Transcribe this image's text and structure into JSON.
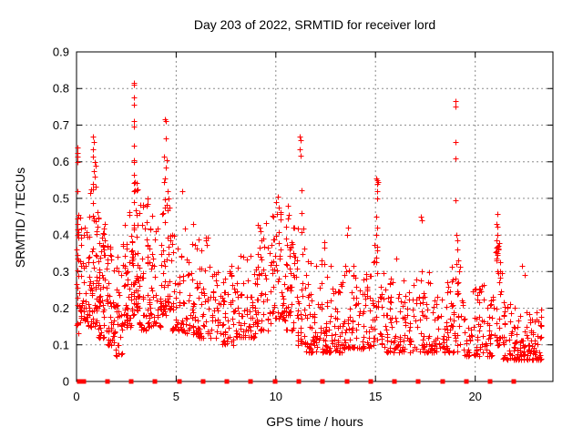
{
  "chart_data": {
    "type": "scatter",
    "title": "Day 203 of 2022, SRMTID for receiver lord",
    "xlabel": "GPS time / hours",
    "ylabel": "SRMTID / TECUs",
    "xlim": [
      0,
      23.9
    ],
    "ylim": [
      0,
      0.9
    ],
    "xticks": [
      0,
      5,
      10,
      15,
      20
    ],
    "xtick_labels": [
      "0",
      "5",
      "10",
      "15",
      "20"
    ],
    "yticks": [
      0,
      0.1,
      0.2,
      0.3,
      0.4,
      0.5,
      0.6,
      0.7,
      0.8,
      0.9
    ],
    "ytick_labels": [
      "0",
      "0.1",
      "0.2",
      "0.3",
      "0.4",
      "0.5",
      "0.6",
      "0.7",
      "0.8",
      "0.9"
    ],
    "grid": true,
    "legend": "none",
    "marker": "plus",
    "marker_size_px": 7,
    "colors": {
      "marker": "#ff0000",
      "axis": "#000000",
      "grid": "#8c8c8c",
      "background": "#ffffff"
    },
    "baseline_squares": {
      "value": 0,
      "shape": "filled-square",
      "hours": [
        0.12,
        0.35,
        1.55,
        2.75,
        3.95,
        5.15,
        6.35,
        7.55,
        8.75,
        9.95,
        11.15,
        12.35,
        13.55,
        14.75,
        15.95,
        17.15,
        18.35,
        19.55,
        20.75,
        21.95
      ]
    },
    "spike_points": [
      [
        0.03,
        0.64
      ],
      [
        0.05,
        0.625
      ],
      [
        0.03,
        0.615
      ],
      [
        0.06,
        0.6
      ],
      [
        0.04,
        0.52
      ],
      [
        0.08,
        0.455
      ],
      [
        0.03,
        0.445
      ],
      [
        0.06,
        0.43
      ],
      [
        0.02,
        0.36
      ],
      [
        0.05,
        0.345
      ],
      [
        0.03,
        0.335
      ],
      [
        0.07,
        0.33
      ],
      [
        0.04,
        0.21
      ],
      [
        0.05,
        0.16
      ],
      [
        0.82,
        0.67
      ],
      [
        0.86,
        0.655
      ],
      [
        0.8,
        0.635
      ],
      [
        0.84,
        0.615
      ],
      [
        0.9,
        0.6
      ],
      [
        0.95,
        0.59
      ],
      [
        0.88,
        0.575
      ],
      [
        0.93,
        0.56
      ],
      [
        2.86,
        0.815
      ],
      [
        2.89,
        0.81
      ],
      [
        2.87,
        0.775
      ],
      [
        2.9,
        0.755
      ],
      [
        2.87,
        0.71
      ],
      [
        2.9,
        0.695
      ],
      [
        2.88,
        0.645
      ],
      [
        2.86,
        0.605
      ],
      [
        2.9,
        0.6
      ],
      [
        2.88,
        0.565
      ],
      [
        2.92,
        0.545
      ],
      [
        2.86,
        0.52
      ],
      [
        3.55,
        0.5
      ],
      [
        3.5,
        0.48
      ],
      [
        4.44,
        0.715
      ],
      [
        4.5,
        0.71
      ],
      [
        4.47,
        0.665
      ],
      [
        4.37,
        0.615
      ],
      [
        4.53,
        0.605
      ],
      [
        4.5,
        0.585
      ],
      [
        4.45,
        0.555
      ],
      [
        4.4,
        0.545
      ],
      [
        4.56,
        0.52
      ],
      [
        4.6,
        0.5
      ],
      [
        5.3,
        0.52
      ],
      [
        10.08,
        0.505
      ],
      [
        10.02,
        0.49
      ],
      [
        10.15,
        0.475
      ],
      [
        10.58,
        0.48
      ],
      [
        10.63,
        0.455
      ],
      [
        11.2,
        0.67
      ],
      [
        11.24,
        0.66
      ],
      [
        11.2,
        0.633
      ],
      [
        11.23,
        0.617
      ],
      [
        11.28,
        0.523
      ],
      [
        11.3,
        0.46
      ],
      [
        12.42,
        0.38
      ],
      [
        12.45,
        0.365
      ],
      [
        13.62,
        0.42
      ],
      [
        13.58,
        0.4
      ],
      [
        15.05,
        0.555
      ],
      [
        15.1,
        0.55
      ],
      [
        15.12,
        0.545
      ],
      [
        15.07,
        0.54
      ],
      [
        15.1,
        0.52
      ],
      [
        15.1,
        0.5
      ],
      [
        15.05,
        0.45
      ],
      [
        15.08,
        0.42
      ],
      [
        15.03,
        0.4
      ],
      [
        16.05,
        0.335
      ],
      [
        17.28,
        0.45
      ],
      [
        17.32,
        0.44
      ],
      [
        17.3,
        0.3
      ],
      [
        19.0,
        0.765
      ],
      [
        19.03,
        0.752
      ],
      [
        19.02,
        0.655
      ],
      [
        19.02,
        0.61
      ],
      [
        19.02,
        0.495
      ],
      [
        19.04,
        0.4
      ],
      [
        19.08,
        0.385
      ],
      [
        19.1,
        0.36
      ],
      [
        19.15,
        0.33
      ],
      [
        19.2,
        0.3
      ],
      [
        18.9,
        0.19
      ],
      [
        18.92,
        0.185
      ],
      [
        21.1,
        0.458
      ],
      [
        21.08,
        0.43
      ],
      [
        21.12,
        0.422
      ],
      [
        21.1,
        0.4
      ],
      [
        21.05,
        0.385
      ],
      [
        21.15,
        0.37
      ],
      [
        21.1,
        0.345
      ],
      [
        21.06,
        0.33
      ],
      [
        21.12,
        0.3
      ],
      [
        21.18,
        0.295
      ],
      [
        22.35,
        0.315
      ],
      [
        22.5,
        0.29
      ]
    ],
    "density_segments": [
      {
        "t0": 0.0,
        "t1": 0.15,
        "n": 14,
        "y0": 0.13,
        "y1": 0.48,
        "p": 1.6
      },
      {
        "t0": 0.15,
        "t1": 0.55,
        "n": 40,
        "y0": 0.16,
        "y1": 0.45,
        "p": 1.8
      },
      {
        "t0": 0.55,
        "t1": 1.05,
        "n": 65,
        "y0": 0.15,
        "y1": 0.55,
        "p": 1.9
      },
      {
        "t0": 1.05,
        "t1": 1.45,
        "n": 55,
        "y0": 0.12,
        "y1": 0.45,
        "p": 1.8
      },
      {
        "t0": 1.45,
        "t1": 1.8,
        "n": 38,
        "y0": 0.1,
        "y1": 0.38,
        "p": 1.7
      },
      {
        "t0": 1.8,
        "t1": 2.3,
        "n": 42,
        "y0": 0.07,
        "y1": 0.35,
        "p": 1.5
      },
      {
        "t0": 2.3,
        "t1": 2.75,
        "n": 48,
        "y0": 0.15,
        "y1": 0.48,
        "p": 1.8
      },
      {
        "t0": 2.75,
        "t1": 3.1,
        "n": 50,
        "y0": 0.18,
        "y1": 0.55,
        "p": 1.9
      },
      {
        "t0": 3.1,
        "t1": 3.6,
        "n": 46,
        "y0": 0.14,
        "y1": 0.5,
        "p": 2.0
      },
      {
        "t0": 3.6,
        "t1": 4.3,
        "n": 55,
        "y0": 0.15,
        "y1": 0.46,
        "p": 2.0
      },
      {
        "t0": 4.3,
        "t1": 4.7,
        "n": 38,
        "y0": 0.18,
        "y1": 0.5,
        "p": 1.8
      },
      {
        "t0": 4.7,
        "t1": 5.4,
        "n": 50,
        "y0": 0.14,
        "y1": 0.43,
        "p": 2.0
      },
      {
        "t0": 5.4,
        "t1": 6.1,
        "n": 46,
        "y0": 0.13,
        "y1": 0.44,
        "p": 2.2
      },
      {
        "t0": 6.1,
        "t1": 6.7,
        "n": 42,
        "y0": 0.12,
        "y1": 0.4,
        "p": 2.2
      },
      {
        "t0": 6.7,
        "t1": 7.3,
        "n": 32,
        "y0": 0.12,
        "y1": 0.3,
        "p": 1.8
      },
      {
        "t0": 7.3,
        "t1": 8.0,
        "n": 50,
        "y0": 0.1,
        "y1": 0.33,
        "p": 2.0
      },
      {
        "t0": 8.0,
        "t1": 9.0,
        "n": 65,
        "y0": 0.12,
        "y1": 0.35,
        "p": 2.0
      },
      {
        "t0": 9.0,
        "t1": 9.8,
        "n": 55,
        "y0": 0.14,
        "y1": 0.44,
        "p": 2.0
      },
      {
        "t0": 9.8,
        "t1": 10.45,
        "n": 50,
        "y0": 0.17,
        "y1": 0.47,
        "p": 1.8
      },
      {
        "t0": 10.45,
        "t1": 11.0,
        "n": 46,
        "y0": 0.14,
        "y1": 0.45,
        "p": 1.9
      },
      {
        "t0": 11.0,
        "t1": 11.5,
        "n": 40,
        "y0": 0.1,
        "y1": 0.44,
        "p": 2.0
      },
      {
        "t0": 11.5,
        "t1": 12.1,
        "n": 46,
        "y0": 0.08,
        "y1": 0.33,
        "p": 2.0
      },
      {
        "t0": 12.1,
        "t1": 12.8,
        "n": 50,
        "y0": 0.08,
        "y1": 0.35,
        "p": 2.2
      },
      {
        "t0": 12.8,
        "t1": 13.4,
        "n": 42,
        "y0": 0.08,
        "y1": 0.28,
        "p": 2.0
      },
      {
        "t0": 13.4,
        "t1": 14.1,
        "n": 46,
        "y0": 0.09,
        "y1": 0.35,
        "p": 2.2
      },
      {
        "t0": 14.1,
        "t1": 14.8,
        "n": 42,
        "y0": 0.09,
        "y1": 0.3,
        "p": 2.0
      },
      {
        "t0": 14.8,
        "t1": 15.35,
        "n": 36,
        "y0": 0.1,
        "y1": 0.38,
        "p": 1.8
      },
      {
        "t0": 15.35,
        "t1": 16.2,
        "n": 50,
        "y0": 0.08,
        "y1": 0.33,
        "p": 2.2
      },
      {
        "t0": 16.2,
        "t1": 17.1,
        "n": 50,
        "y0": 0.08,
        "y1": 0.28,
        "p": 2.0
      },
      {
        "t0": 17.1,
        "t1": 17.7,
        "n": 36,
        "y0": 0.08,
        "y1": 0.3,
        "p": 1.8
      },
      {
        "t0": 17.7,
        "t1": 18.6,
        "n": 50,
        "y0": 0.08,
        "y1": 0.28,
        "p": 2.0
      },
      {
        "t0": 18.6,
        "t1": 19.35,
        "n": 46,
        "y0": 0.08,
        "y1": 0.33,
        "p": 1.8
      },
      {
        "t0": 19.35,
        "t1": 20.2,
        "n": 46,
        "y0": 0.07,
        "y1": 0.27,
        "p": 2.0
      },
      {
        "t0": 20.2,
        "t1": 21.0,
        "n": 46,
        "y0": 0.07,
        "y1": 0.27,
        "p": 2.0
      },
      {
        "t0": 21.0,
        "t1": 21.35,
        "n": 30,
        "y0": 0.1,
        "y1": 0.38,
        "p": 1.8
      },
      {
        "t0": 21.35,
        "t1": 22.0,
        "n": 42,
        "y0": 0.06,
        "y1": 0.22,
        "p": 2.0
      },
      {
        "t0": 22.0,
        "t1": 23.35,
        "n": 105,
        "y0": 0.06,
        "y1": 0.2,
        "p": 2.4
      }
    ],
    "seed": 42
  }
}
